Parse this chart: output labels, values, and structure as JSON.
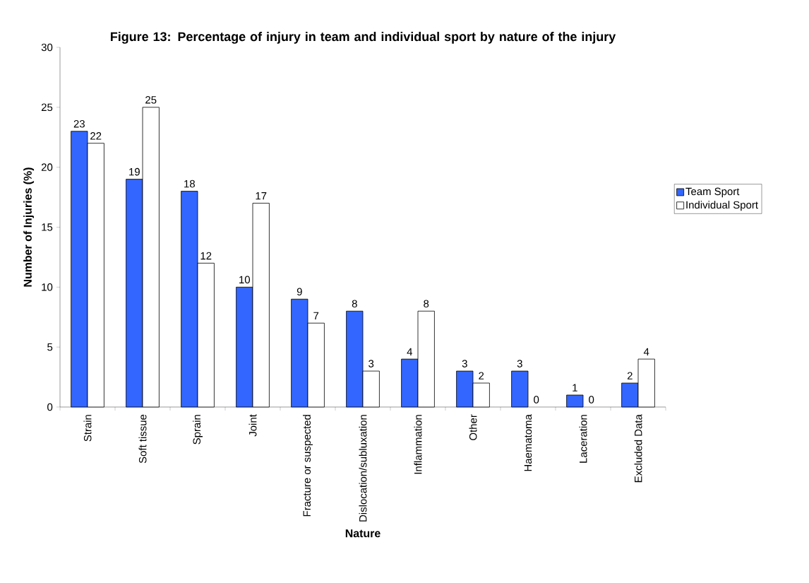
{
  "chart_data": {
    "type": "bar",
    "title": "Figure 13: Percentage of injury in team and individual sport by nature of the injury",
    "xlabel": "Nature",
    "ylabel": "Number of Injuries (%)",
    "categories": [
      "Strain",
      "Soft tissue",
      "Sprain",
      "Joint",
      "Fracture or suspected",
      "Dislocation/subluxation",
      "Inflammation",
      "Other",
      "Haematoma",
      "Laceration",
      "Excluded Data"
    ],
    "series": [
      {
        "name": "Team Sport",
        "color": "#3366ff",
        "values": [
          23,
          19,
          18,
          10,
          9,
          8,
          4,
          3,
          3,
          1,
          2
        ]
      },
      {
        "name": "Individual Sport",
        "color": "#ffffff",
        "values": [
          22,
          25,
          12,
          17,
          7,
          3,
          8,
          2,
          0,
          0,
          4
        ]
      }
    ],
    "ylim": [
      0,
      30
    ],
    "yticks": [
      0,
      5,
      10,
      15,
      20,
      25,
      30
    ],
    "data_labels": true,
    "legend": "right"
  }
}
